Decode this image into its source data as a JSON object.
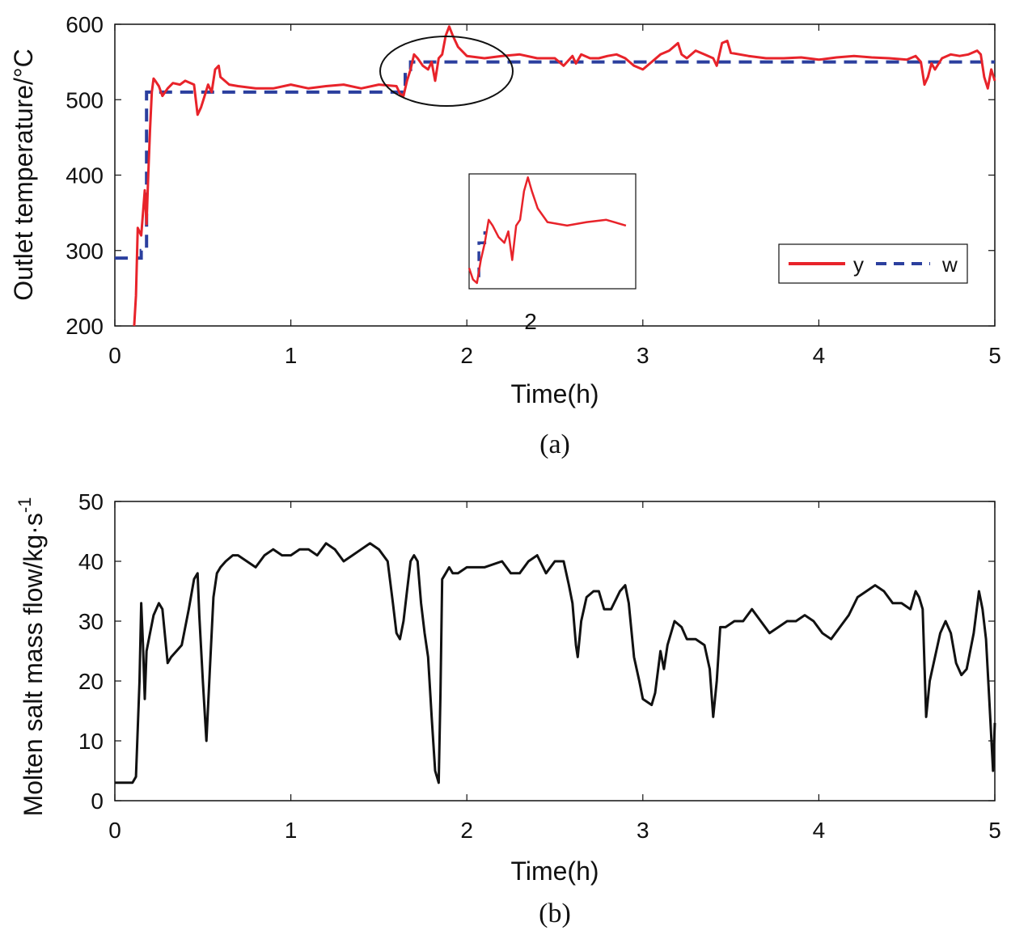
{
  "chart_data": [
    {
      "type": "line",
      "caption": "(a)",
      "xlabel": "Time(h)",
      "ylabel": "Outlet temperature/°C",
      "xlim": [
        0,
        5
      ],
      "ylim": [
        200,
        600
      ],
      "xticks": [
        "0",
        "1",
        "2",
        "3",
        "4",
        "5"
      ],
      "yticks": [
        "200",
        "300",
        "400",
        "500",
        "600"
      ],
      "colors": {
        "y": "#e8232a",
        "w": "#2b3f9e"
      },
      "series": [
        {
          "name": "y",
          "x": [
            0.11,
            0.12,
            0.13,
            0.15,
            0.17,
            0.18,
            0.19,
            0.2,
            0.21,
            0.22,
            0.23,
            0.25,
            0.27,
            0.3,
            0.33,
            0.37,
            0.4,
            0.45,
            0.47,
            0.49,
            0.51,
            0.53,
            0.55,
            0.57,
            0.59,
            0.6,
            0.65,
            0.7,
            0.8,
            0.9,
            1.0,
            1.1,
            1.2,
            1.3,
            1.4,
            1.5,
            1.6,
            1.62,
            1.64,
            1.66,
            1.68,
            1.7,
            1.72,
            1.75,
            1.78,
            1.8,
            1.82,
            1.84,
            1.86,
            1.88,
            1.9,
            1.92,
            1.95,
            2.0,
            2.1,
            2.2,
            2.3,
            2.4,
            2.5,
            2.55,
            2.6,
            2.62,
            2.65,
            2.7,
            2.75,
            2.8,
            2.85,
            2.9,
            2.95,
            3.0,
            3.05,
            3.1,
            3.15,
            3.2,
            3.22,
            3.25,
            3.3,
            3.35,
            3.4,
            3.42,
            3.45,
            3.48,
            3.5,
            3.6,
            3.7,
            3.8,
            3.9,
            4.0,
            4.1,
            4.2,
            4.3,
            4.4,
            4.5,
            4.55,
            4.58,
            4.6,
            4.62,
            4.64,
            4.66,
            4.7,
            4.75,
            4.8,
            4.85,
            4.9,
            4.92,
            4.94,
            4.96,
            4.98,
            5.0
          ],
          "y": [
            200,
            240,
            330,
            320,
            380,
            335,
            400,
            460,
            510,
            528,
            525,
            518,
            505,
            515,
            522,
            520,
            525,
            520,
            480,
            490,
            505,
            520,
            510,
            540,
            545,
            530,
            520,
            518,
            515,
            515,
            520,
            515,
            518,
            520,
            515,
            520,
            518,
            508,
            505,
            525,
            540,
            560,
            555,
            545,
            540,
            550,
            525,
            555,
            560,
            585,
            597,
            585,
            570,
            558,
            555,
            558,
            560,
            555,
            555,
            545,
            558,
            548,
            560,
            555,
            555,
            558,
            560,
            555,
            545,
            540,
            550,
            560,
            565,
            575,
            560,
            555,
            565,
            560,
            555,
            545,
            575,
            578,
            562,
            558,
            555,
            555,
            556,
            553,
            556,
            558,
            556,
            555,
            553,
            558,
            550,
            520,
            530,
            548,
            540,
            555,
            560,
            558,
            560,
            565,
            560,
            530,
            515,
            540,
            525
          ]
        },
        {
          "name": "w",
          "x": [
            0,
            0.15,
            0.15,
            0.18,
            0.18,
            1.65,
            1.65,
            1.68,
            1.68,
            5.0
          ],
          "y": [
            290,
            290,
            300,
            300,
            510,
            510,
            540,
            540,
            550,
            550
          ]
        }
      ],
      "legend": [
        "y",
        "w"
      ],
      "annotations": [
        "2"
      ]
    },
    {
      "type": "line",
      "caption": "(b)",
      "xlabel": "Time(h)",
      "ylabel": "Molten salt mass flow/kg·s",
      "ylabel_exponent": "-1",
      "xlim": [
        0,
        5
      ],
      "ylim": [
        0,
        50
      ],
      "xticks": [
        "0",
        "1",
        "2",
        "3",
        "4",
        "5"
      ],
      "yticks": [
        "0",
        "10",
        "20",
        "30",
        "40",
        "50"
      ],
      "colors": {
        "flow": "#111111"
      },
      "series": [
        {
          "name": "flow",
          "x": [
            0,
            0.08,
            0.1,
            0.12,
            0.14,
            0.15,
            0.16,
            0.17,
            0.18,
            0.2,
            0.22,
            0.25,
            0.27,
            0.3,
            0.32,
            0.35,
            0.38,
            0.42,
            0.45,
            0.47,
            0.48,
            0.5,
            0.52,
            0.54,
            0.56,
            0.58,
            0.6,
            0.63,
            0.67,
            0.7,
            0.75,
            0.8,
            0.85,
            0.9,
            0.95,
            1.0,
            1.05,
            1.1,
            1.15,
            1.2,
            1.25,
            1.3,
            1.35,
            1.4,
            1.45,
            1.5,
            1.55,
            1.58,
            1.6,
            1.62,
            1.64,
            1.66,
            1.68,
            1.7,
            1.72,
            1.74,
            1.76,
            1.78,
            1.8,
            1.82,
            1.84,
            1.85,
            1.86,
            1.88,
            1.9,
            1.92,
            1.95,
            2.0,
            2.1,
            2.2,
            2.25,
            2.3,
            2.35,
            2.4,
            2.45,
            2.5,
            2.55,
            2.58,
            2.6,
            2.62,
            2.63,
            2.65,
            2.68,
            2.72,
            2.75,
            2.78,
            2.82,
            2.87,
            2.9,
            2.92,
            2.95,
            2.98,
            3.0,
            3.05,
            3.07,
            3.1,
            3.12,
            3.14,
            3.18,
            3.22,
            3.25,
            3.3,
            3.35,
            3.38,
            3.4,
            3.42,
            3.44,
            3.47,
            3.52,
            3.57,
            3.62,
            3.67,
            3.72,
            3.77,
            3.82,
            3.87,
            3.92,
            3.97,
            4.02,
            4.07,
            4.12,
            4.17,
            4.22,
            4.27,
            4.32,
            4.37,
            4.42,
            4.47,
            4.52,
            4.55,
            4.57,
            4.59,
            4.61,
            4.63,
            4.66,
            4.69,
            4.72,
            4.75,
            4.78,
            4.81,
            4.84,
            4.88,
            4.91,
            4.93,
            4.95,
            4.97,
            4.99,
            5.0
          ],
          "y": [
            3,
            3,
            3,
            4,
            20,
            33,
            26,
            17,
            25,
            28,
            31,
            33,
            32,
            23,
            24,
            25,
            26,
            32,
            37,
            38,
            31,
            20,
            10,
            22,
            34,
            38,
            39,
            40,
            41,
            41,
            40,
            39,
            41,
            42,
            41,
            41,
            42,
            42,
            41,
            43,
            42,
            40,
            41,
            42,
            43,
            42,
            40,
            33,
            28,
            27,
            30,
            35,
            40,
            41,
            40,
            33,
            28,
            24,
            14,
            5,
            3,
            18,
            37,
            38,
            39,
            38,
            38,
            39,
            39,
            40,
            38,
            38,
            40,
            41,
            38,
            40,
            40,
            36,
            33,
            26,
            24,
            30,
            34,
            35,
            35,
            32,
            32,
            35,
            36,
            33,
            24,
            20,
            17,
            16,
            18,
            25,
            22,
            26,
            30,
            29,
            27,
            27,
            26,
            22,
            14,
            20,
            29,
            29,
            30,
            30,
            32,
            30,
            28,
            29,
            30,
            30,
            31,
            30,
            28,
            27,
            29,
            31,
            34,
            35,
            36,
            35,
            33,
            33,
            32,
            35,
            34,
            32,
            14,
            20,
            24,
            28,
            30,
            28,
            23,
            21,
            22,
            28,
            35,
            32,
            27,
            16,
            5,
            13
          ]
        }
      ]
    }
  ]
}
